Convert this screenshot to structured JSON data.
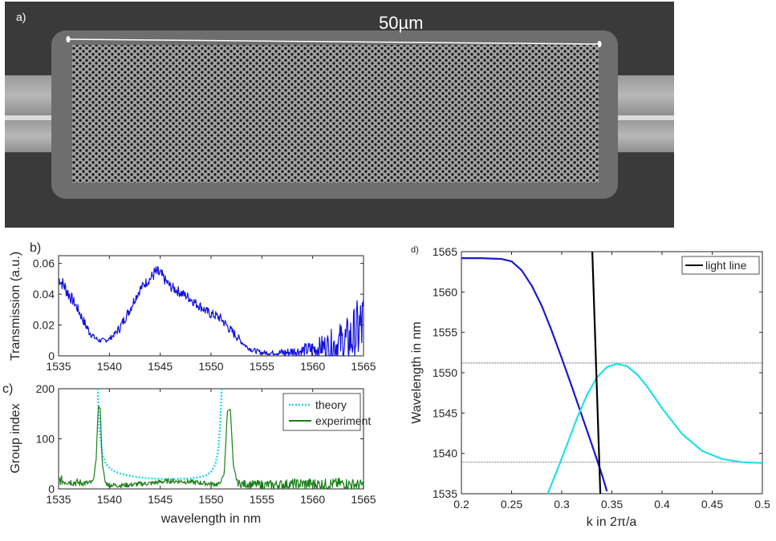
{
  "sem_panel": {
    "label": "a)",
    "scale_bar_text": "50µm"
  },
  "chart_data": [
    {
      "id": "b",
      "panel_label": "b)",
      "type": "line",
      "title": "",
      "xlabel": "",
      "ylabel": "Transmission (a.u.)",
      "xlim": [
        1535,
        1565
      ],
      "ylim": [
        0,
        0.065
      ],
      "xticks": [
        1535,
        1540,
        1545,
        1550,
        1555,
        1560,
        1565
      ],
      "yticks": [
        0,
        0.02,
        0.04,
        0.06
      ],
      "ytick_labels": [
        "0",
        "0.02",
        "0.04",
        "0.06"
      ],
      "grid": false,
      "series": [
        {
          "name": "",
          "color": "#1010e0",
          "style": "noisy-line",
          "x": [
            1535,
            1535.5,
            1536,
            1536.5,
            1537,
            1537.5,
            1538,
            1538.5,
            1539,
            1539.5,
            1540,
            1540.5,
            1541,
            1541.5,
            1542,
            1542.5,
            1543,
            1543.5,
            1544,
            1544.5,
            1545,
            1545.5,
            1546,
            1546.5,
            1547,
            1547.5,
            1548,
            1548.5,
            1549,
            1549.5,
            1550,
            1550.5,
            1551,
            1551.5,
            1552,
            1552.5,
            1553,
            1553.5,
            1554,
            1554.5,
            1555,
            1555.5,
            1556,
            1556.5,
            1557,
            1557.5,
            1558,
            1558.5,
            1559,
            1559.5,
            1560,
            1560.5,
            1561,
            1561.5,
            1562,
            1562.5,
            1563,
            1563.5,
            1564,
            1564.5,
            1565
          ],
          "y": [
            0.05,
            0.046,
            0.04,
            0.035,
            0.029,
            0.022,
            0.016,
            0.012,
            0.01,
            0.01,
            0.011,
            0.014,
            0.018,
            0.024,
            0.03,
            0.037,
            0.043,
            0.047,
            0.05,
            0.054,
            0.053,
            0.049,
            0.045,
            0.043,
            0.041,
            0.039,
            0.037,
            0.034,
            0.032,
            0.029,
            0.027,
            0.026,
            0.024,
            0.02,
            0.016,
            0.013,
            0.009,
            0.006,
            0.004,
            0.003,
            0.002,
            0.002,
            0.002,
            0.002,
            0.002,
            0.002,
            0.003,
            0.003,
            0.003,
            0.004,
            0.004,
            0.005,
            0.006,
            0.006,
            0.007,
            0.008,
            0.009,
            0.01,
            0.012,
            0.016,
            0.02
          ],
          "noise": [
            0.002,
            0.003,
            0.003,
            0.002,
            0.002,
            0.002,
            0.002,
            0.001,
            0.001,
            0.001,
            0.001,
            0.001,
            0.002,
            0.002,
            0.002,
            0.002,
            0.002,
            0.002,
            0.002,
            0.003,
            0.003,
            0.002,
            0.002,
            0.002,
            0.002,
            0.002,
            0.002,
            0.002,
            0.002,
            0.002,
            0.002,
            0.002,
            0.002,
            0.002,
            0.002,
            0.002,
            0.001,
            0.001,
            0.001,
            0.001,
            0.001,
            0.001,
            0.001,
            0.001,
            0.002,
            0.002,
            0.002,
            0.002,
            0.003,
            0.003,
            0.004,
            0.004,
            0.005,
            0.006,
            0.007,
            0.008,
            0.009,
            0.01,
            0.012,
            0.014,
            0.016
          ]
        }
      ]
    },
    {
      "id": "c",
      "panel_label": "c)",
      "type": "line",
      "title": "",
      "xlabel": "wavelength in nm",
      "ylabel": "Group index",
      "xlim": [
        1535,
        1565
      ],
      "ylim": [
        0,
        200
      ],
      "xticks": [
        1535,
        1540,
        1545,
        1550,
        1555,
        1560,
        1565
      ],
      "yticks": [
        0,
        100,
        200
      ],
      "ytick_labels": [
        "0",
        "100",
        "200"
      ],
      "grid": false,
      "legend": {
        "placement": "top-right"
      },
      "series": [
        {
          "name": "theory",
          "color": "#27d7ea",
          "style": "dotted",
          "x": [
            1538.85,
            1539,
            1539.3,
            1539.6,
            1540,
            1540.5,
            1541,
            1542,
            1543,
            1544,
            1545,
            1546,
            1547,
            1548,
            1549,
            1549.5,
            1550,
            1550.4,
            1550.7,
            1550.9,
            1551.05
          ],
          "y": [
            200,
            120,
            70,
            52,
            42,
            35,
            31,
            26,
            23,
            21,
            20,
            20,
            20,
            21,
            24,
            27,
            34,
            48,
            75,
            130,
            200
          ]
        },
        {
          "name": "experiment",
          "color": "#1a801a",
          "style": "noisy-line",
          "x": [
            1535,
            1535.5,
            1536,
            1536.5,
            1537,
            1537.5,
            1538,
            1538.4,
            1538.7,
            1538.9,
            1539.1,
            1539.3,
            1539.6,
            1540,
            1541,
            1542,
            1543,
            1544,
            1545,
            1546,
            1547,
            1548,
            1549,
            1550,
            1550.8,
            1551.3,
            1551.6,
            1551.9,
            1552.2,
            1552.6,
            1553,
            1554,
            1555,
            1556,
            1557,
            1558,
            1559,
            1560,
            1561,
            1562,
            1563,
            1564,
            1565
          ],
          "y": [
            18,
            16,
            15,
            13,
            12,
            12,
            11,
            14,
            60,
            165,
            160,
            50,
            12,
            8,
            7,
            8,
            10,
            11,
            14,
            16,
            15,
            14,
            12,
            10,
            9,
            30,
            155,
            160,
            45,
            12,
            10,
            9,
            8,
            8,
            9,
            9,
            10,
            10,
            9,
            10,
            11,
            9,
            8
          ],
          "noise": [
            6,
            6,
            5,
            5,
            5,
            4,
            4,
            3,
            0,
            0,
            0,
            0,
            3,
            3,
            3,
            3,
            3,
            3,
            3,
            3,
            3,
            3,
            3,
            3,
            3,
            0,
            0,
            0,
            0,
            4,
            5,
            5,
            6,
            6,
            6,
            7,
            7,
            7,
            7,
            7,
            7,
            7,
            6
          ]
        }
      ]
    },
    {
      "id": "d",
      "panel_label": "d)",
      "type": "line",
      "title": "",
      "xlabel": "k in 2π/a",
      "ylabel": "Wavelength in nm",
      "xlim": [
        0.2,
        0.5
      ],
      "ylim": [
        1535,
        1565
      ],
      "xticks": [
        0.2,
        0.25,
        0.3,
        0.35,
        0.4,
        0.45,
        0.5
      ],
      "xtick_labels": [
        "0.2",
        "0.25",
        "0.3",
        "0.35",
        "0.4",
        "0.45",
        "0.5"
      ],
      "yticks": [
        1535,
        1540,
        1545,
        1550,
        1555,
        1560,
        1565
      ],
      "grid": false,
      "legend": {
        "placement": "top-right"
      },
      "hlines": [
        1551.2,
        1538.9
      ],
      "series": [
        {
          "name": "",
          "color": "#1a1ad0",
          "style": "solid",
          "x": [
            0.2,
            0.22,
            0.24,
            0.25,
            0.26,
            0.27,
            0.28,
            0.29,
            0.3,
            0.31,
            0.32,
            0.33,
            0.34,
            0.345
          ],
          "y": [
            1564.2,
            1564.2,
            1564.1,
            1563.8,
            1562.7,
            1560.8,
            1558.3,
            1555.2,
            1551.8,
            1548.3,
            1544.7,
            1541.1,
            1537.4,
            1535.3
          ]
        },
        {
          "name": "",
          "color": "#22e0e8",
          "style": "solid",
          "x": [
            0.286,
            0.295,
            0.305,
            0.315,
            0.325,
            0.335,
            0.345,
            0.355,
            0.365,
            0.375,
            0.385,
            0.4,
            0.42,
            0.44,
            0.46,
            0.48,
            0.5
          ],
          "y": [
            1535,
            1537.8,
            1541,
            1544.3,
            1547.2,
            1549.4,
            1550.7,
            1551.1,
            1550.8,
            1549.8,
            1548.3,
            1545.6,
            1542.4,
            1540.3,
            1539.3,
            1538.9,
            1538.8
          ]
        },
        {
          "name": "light line",
          "color": "#000000",
          "style": "solid",
          "x": [
            0.3305,
            0.3385
          ],
          "y": [
            1565,
            1535
          ]
        }
      ]
    }
  ]
}
